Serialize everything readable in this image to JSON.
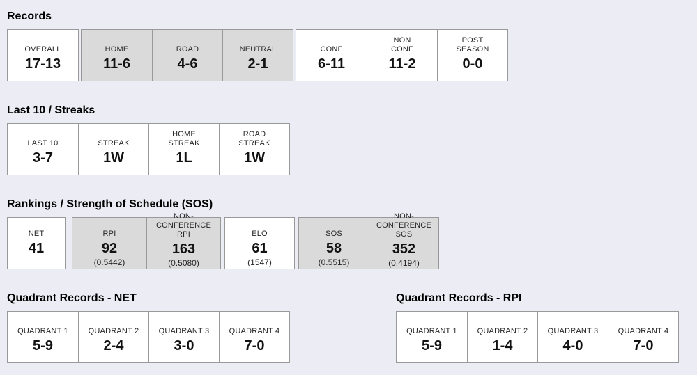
{
  "colors": {
    "background": "#ececf4",
    "box_white": "#ffffff",
    "box_gray": "#dadada",
    "border": "#999999",
    "heading_text": "#000000",
    "label_text": "#252525",
    "value_text": "#121212"
  },
  "sections": {
    "records": {
      "heading": "Records",
      "groups": {
        "overall": {
          "cells": [
            {
              "label": "OVERALL",
              "value": "17-13"
            }
          ]
        },
        "home_road_neutral": {
          "cells": [
            {
              "label": "HOME",
              "value": "11-6"
            },
            {
              "label": "ROAD",
              "value": "4-6"
            },
            {
              "label": "NEUTRAL",
              "value": "2-1"
            }
          ]
        },
        "conference": {
          "cells": [
            {
              "label": "CONF",
              "value": "6-11"
            },
            {
              "label": "NON\nCONF",
              "value": "11-2"
            },
            {
              "label": "POST\nSEASON",
              "value": "0-0"
            }
          ]
        }
      }
    },
    "streaks": {
      "heading": "Last 10 / Streaks",
      "groups": {
        "main": {
          "cells": [
            {
              "label": "LAST 10",
              "value": "3-7"
            },
            {
              "label": "STREAK",
              "value": "1W"
            },
            {
              "label": "HOME\nSTREAK",
              "value": "1L"
            },
            {
              "label": "ROAD\nSTREAK",
              "value": "1W"
            }
          ]
        }
      }
    },
    "rankings": {
      "heading": "Rankings / Strength of Schedule (SOS)",
      "groups": {
        "net": {
          "cells": [
            {
              "label": "NET",
              "value": "41",
              "sub": ""
            }
          ]
        },
        "rpi": {
          "cells": [
            {
              "label": "RPI",
              "value": "92",
              "sub": "(0.5442)"
            },
            {
              "label": "NON-CONFERENCE\nRPI",
              "value": "163",
              "sub": "(0.5080)"
            }
          ]
        },
        "elo": {
          "cells": [
            {
              "label": "ELO",
              "value": "61",
              "sub": "(1547)"
            }
          ]
        },
        "sos": {
          "cells": [
            {
              "label": "SOS",
              "value": "58",
              "sub": "(0.5515)"
            },
            {
              "label": "NON-CONFERENCE\nSOS",
              "value": "352",
              "sub": "(0.4194)"
            }
          ]
        }
      }
    },
    "quadrant_net": {
      "heading": "Quadrant Records - NET",
      "groups": {
        "main": {
          "cells": [
            {
              "label": "QUADRANT 1",
              "value": "5-9"
            },
            {
              "label": "QUADRANT 2",
              "value": "2-4"
            },
            {
              "label": "QUADRANT 3",
              "value": "3-0"
            },
            {
              "label": "QUADRANT 4",
              "value": "7-0"
            }
          ]
        }
      }
    },
    "quadrant_rpi": {
      "heading": "Quadrant Records - RPI",
      "groups": {
        "main": {
          "cells": [
            {
              "label": "QUADRANT 1",
              "value": "5-9"
            },
            {
              "label": "QUADRANT 2",
              "value": "1-4"
            },
            {
              "label": "QUADRANT 3",
              "value": "4-0"
            },
            {
              "label": "QUADRANT 4",
              "value": "7-0"
            }
          ]
        }
      }
    }
  }
}
